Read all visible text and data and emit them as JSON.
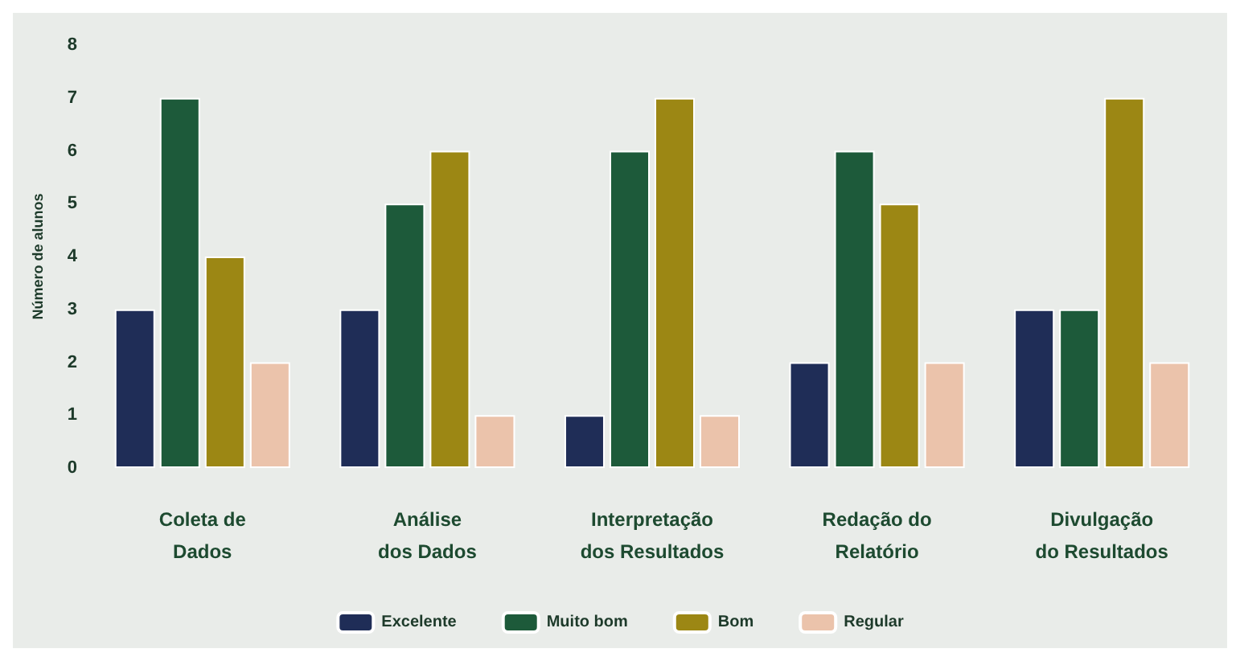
{
  "chart_data": {
    "type": "bar",
    "ylabel": "Número de alunos",
    "categories": [
      "Coleta de\nDados",
      "Análise\ndos Dados",
      "Interpretação\ndos Resultados",
      "Redação do\nRelatório",
      "Divulgação\ndo Resultados"
    ],
    "series": [
      {
        "name": "Excelente",
        "color": "#1f2d57",
        "values": [
          3,
          3,
          1,
          2,
          3
        ]
      },
      {
        "name": "Muito bom",
        "color": "#1d5a3a",
        "values": [
          7,
          5,
          6,
          6,
          3
        ]
      },
      {
        "name": "Bom",
        "color": "#9c8714",
        "values": [
          4,
          6,
          7,
          5,
          7
        ]
      },
      {
        "name": "Regular",
        "color": "#ebc3ab",
        "values": [
          2,
          1,
          1,
          2,
          2
        ]
      }
    ],
    "ylim": [
      0,
      8
    ],
    "yticks": [
      0,
      1,
      2,
      3,
      4,
      5,
      6,
      7,
      8
    ],
    "grid": false,
    "legend": "bottom"
  }
}
